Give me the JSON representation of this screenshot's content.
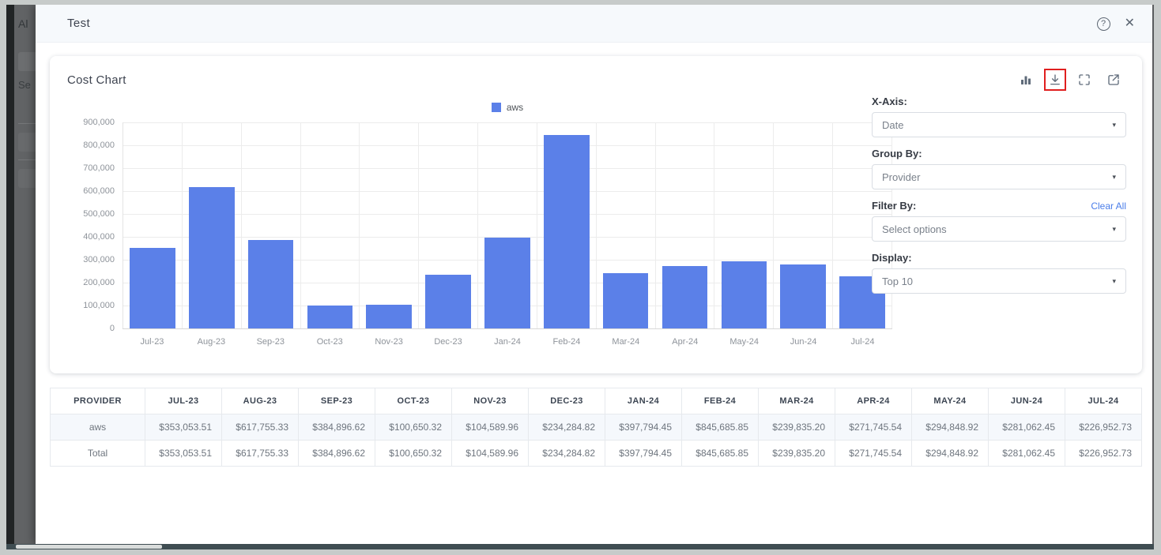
{
  "modal": {
    "title": "Test"
  },
  "icons": {
    "help": "?",
    "close": "✕",
    "caret": "▾"
  },
  "background_fragments": {
    "top": "Al",
    "mid": "Se"
  },
  "card": {
    "title": "Cost Chart"
  },
  "toolbar": {
    "buttons": [
      "chart-type",
      "download",
      "fullscreen",
      "open-external"
    ],
    "highlighted_button": "download"
  },
  "controls": {
    "x_axis": {
      "label": "X-Axis:",
      "value": "Date"
    },
    "group_by": {
      "label": "Group By:",
      "value": "Provider"
    },
    "filter_by": {
      "label": "Filter By:",
      "value": "Select options",
      "clear_all": "Clear All"
    },
    "display": {
      "label": "Display:",
      "value": "Top 10"
    }
  },
  "chart_data": {
    "type": "bar",
    "title": "Cost Chart",
    "categories": [
      "Jul-23",
      "Aug-23",
      "Sep-23",
      "Oct-23",
      "Nov-23",
      "Dec-23",
      "Jan-24",
      "Feb-24",
      "Mar-24",
      "Apr-24",
      "May-24",
      "Jun-24",
      "Jul-24"
    ],
    "series": [
      {
        "name": "aws",
        "values": [
          353053.51,
          617755.33,
          384896.62,
          100650.32,
          104589.96,
          234284.82,
          397794.45,
          845685.85,
          239835.2,
          271745.54,
          294848.92,
          281062.45,
          226952.73
        ]
      }
    ],
    "xlabel": "",
    "ylabel": "",
    "ylim": [
      0,
      900000
    ],
    "ytick_step": 100000,
    "ytick_labels": [
      "0",
      "100,000",
      "200,000",
      "300,000",
      "400,000",
      "500,000",
      "600,000",
      "700,000",
      "800,000",
      "900,000"
    ],
    "grid": true,
    "legend_position": "top",
    "bar_color": "#5b80e8"
  },
  "table": {
    "headers": [
      "PROVIDER",
      "JUL-23",
      "AUG-23",
      "SEP-23",
      "OCT-23",
      "NOV-23",
      "DEC-23",
      "JAN-24",
      "FEB-24",
      "MAR-24",
      "APR-24",
      "MAY-24",
      "JUN-24",
      "JUL-24"
    ],
    "rows": [
      {
        "label": "aws",
        "values": [
          "$353,053.51",
          "$617,755.33",
          "$384,896.62",
          "$100,650.32",
          "$104,589.96",
          "$234,284.82",
          "$397,794.45",
          "$845,685.85",
          "$239,835.20",
          "$271,745.54",
          "$294,848.92",
          "$281,062.45",
          "$226,952.73"
        ]
      },
      {
        "label": "Total",
        "values": [
          "$353,053.51",
          "$617,755.33",
          "$384,896.62",
          "$100,650.32",
          "$104,589.96",
          "$234,284.82",
          "$397,794.45",
          "$845,685.85",
          "$239,835.20",
          "$271,745.54",
          "$294,848.92",
          "$281,062.45",
          "$226,952.73"
        ]
      }
    ]
  },
  "colors": {
    "bar_blue": "#5b80e8",
    "link_blue": "#4a7de9",
    "highlight_red": "#e01f1f",
    "header_bg": "#f6f9fc",
    "zebra_row": "#f5f8fc"
  }
}
